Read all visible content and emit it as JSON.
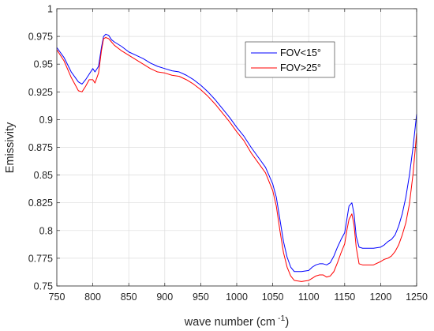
{
  "chart_data": {
    "type": "line",
    "title": "",
    "xlabel_main": "wave number (cm",
    "xlabel_sup": "-1",
    "xlabel_close": ")",
    "ylabel": "Emissivity",
    "xlim": [
      750,
      1250
    ],
    "ylim": [
      0.75,
      1
    ],
    "xticks": [
      750,
      800,
      850,
      900,
      950,
      1000,
      1050,
      1100,
      1150,
      1200,
      1250
    ],
    "yticks": [
      0.75,
      0.775,
      0.8,
      0.825,
      0.85,
      0.875,
      0.9,
      0.925,
      0.95,
      0.975,
      1
    ],
    "ytick_labels": [
      "0.75",
      "0.775",
      "0.8",
      "0.825",
      "0.85",
      "0.875",
      "0.9",
      "0.925",
      "0.95",
      "0.975",
      "1"
    ],
    "grid": true,
    "legend_position": "top-right",
    "series": [
      {
        "name": "FOV<15°",
        "color": "#0000ff",
        "x": [
          750,
          760,
          770,
          780,
          785,
          790,
          795,
          800,
          803,
          808,
          812,
          815,
          818,
          822,
          826,
          830,
          840,
          850,
          860,
          870,
          880,
          890,
          900,
          910,
          920,
          930,
          940,
          950,
          960,
          970,
          980,
          990,
          1000,
          1010,
          1020,
          1030,
          1040,
          1050,
          1055,
          1060,
          1065,
          1070,
          1075,
          1080,
          1090,
          1100,
          1105,
          1110,
          1115,
          1120,
          1125,
          1130,
          1135,
          1140,
          1145,
          1150,
          1153,
          1156,
          1160,
          1163,
          1166,
          1170,
          1175,
          1180,
          1190,
          1200,
          1205,
          1210,
          1215,
          1220,
          1225,
          1230,
          1235,
          1240,
          1245,
          1250
        ],
        "y": [
          0.965,
          0.956,
          0.943,
          0.934,
          0.932,
          0.936,
          0.941,
          0.946,
          0.943,
          0.948,
          0.965,
          0.975,
          0.977,
          0.976,
          0.972,
          0.97,
          0.966,
          0.961,
          0.958,
          0.955,
          0.951,
          0.948,
          0.946,
          0.944,
          0.943,
          0.94,
          0.936,
          0.931,
          0.925,
          0.918,
          0.91,
          0.902,
          0.893,
          0.885,
          0.875,
          0.866,
          0.857,
          0.842,
          0.83,
          0.81,
          0.79,
          0.776,
          0.767,
          0.763,
          0.763,
          0.764,
          0.767,
          0.769,
          0.77,
          0.77,
          0.769,
          0.771,
          0.777,
          0.785,
          0.792,
          0.798,
          0.81,
          0.822,
          0.825,
          0.815,
          0.795,
          0.785,
          0.784,
          0.784,
          0.784,
          0.785,
          0.787,
          0.79,
          0.792,
          0.796,
          0.804,
          0.815,
          0.83,
          0.85,
          0.875,
          0.905
        ]
      },
      {
        "name": "FOV>25°",
        "color": "#ff0000",
        "x": [
          750,
          760,
          770,
          780,
          785,
          790,
          795,
          800,
          803,
          808,
          812,
          815,
          818,
          822,
          826,
          830,
          840,
          850,
          860,
          870,
          880,
          890,
          900,
          910,
          920,
          930,
          940,
          950,
          960,
          970,
          980,
          990,
          1000,
          1010,
          1020,
          1030,
          1040,
          1050,
          1055,
          1060,
          1065,
          1070,
          1075,
          1080,
          1090,
          1100,
          1105,
          1110,
          1115,
          1120,
          1125,
          1130,
          1135,
          1140,
          1145,
          1150,
          1153,
          1156,
          1160,
          1163,
          1166,
          1170,
          1175,
          1180,
          1190,
          1200,
          1205,
          1210,
          1215,
          1220,
          1225,
          1230,
          1235,
          1240,
          1245,
          1250
        ],
        "y": [
          0.963,
          0.953,
          0.938,
          0.926,
          0.925,
          0.93,
          0.936,
          0.936,
          0.933,
          0.942,
          0.962,
          0.973,
          0.974,
          0.973,
          0.97,
          0.967,
          0.962,
          0.958,
          0.954,
          0.95,
          0.946,
          0.943,
          0.942,
          0.94,
          0.939,
          0.936,
          0.932,
          0.927,
          0.921,
          0.914,
          0.906,
          0.898,
          0.889,
          0.881,
          0.87,
          0.861,
          0.852,
          0.836,
          0.822,
          0.8,
          0.78,
          0.767,
          0.759,
          0.755,
          0.754,
          0.755,
          0.757,
          0.759,
          0.76,
          0.76,
          0.758,
          0.759,
          0.763,
          0.771,
          0.78,
          0.788,
          0.8,
          0.81,
          0.815,
          0.805,
          0.785,
          0.77,
          0.769,
          0.769,
          0.769,
          0.772,
          0.774,
          0.775,
          0.777,
          0.781,
          0.787,
          0.796,
          0.807,
          0.824,
          0.851,
          0.888
        ]
      }
    ]
  }
}
